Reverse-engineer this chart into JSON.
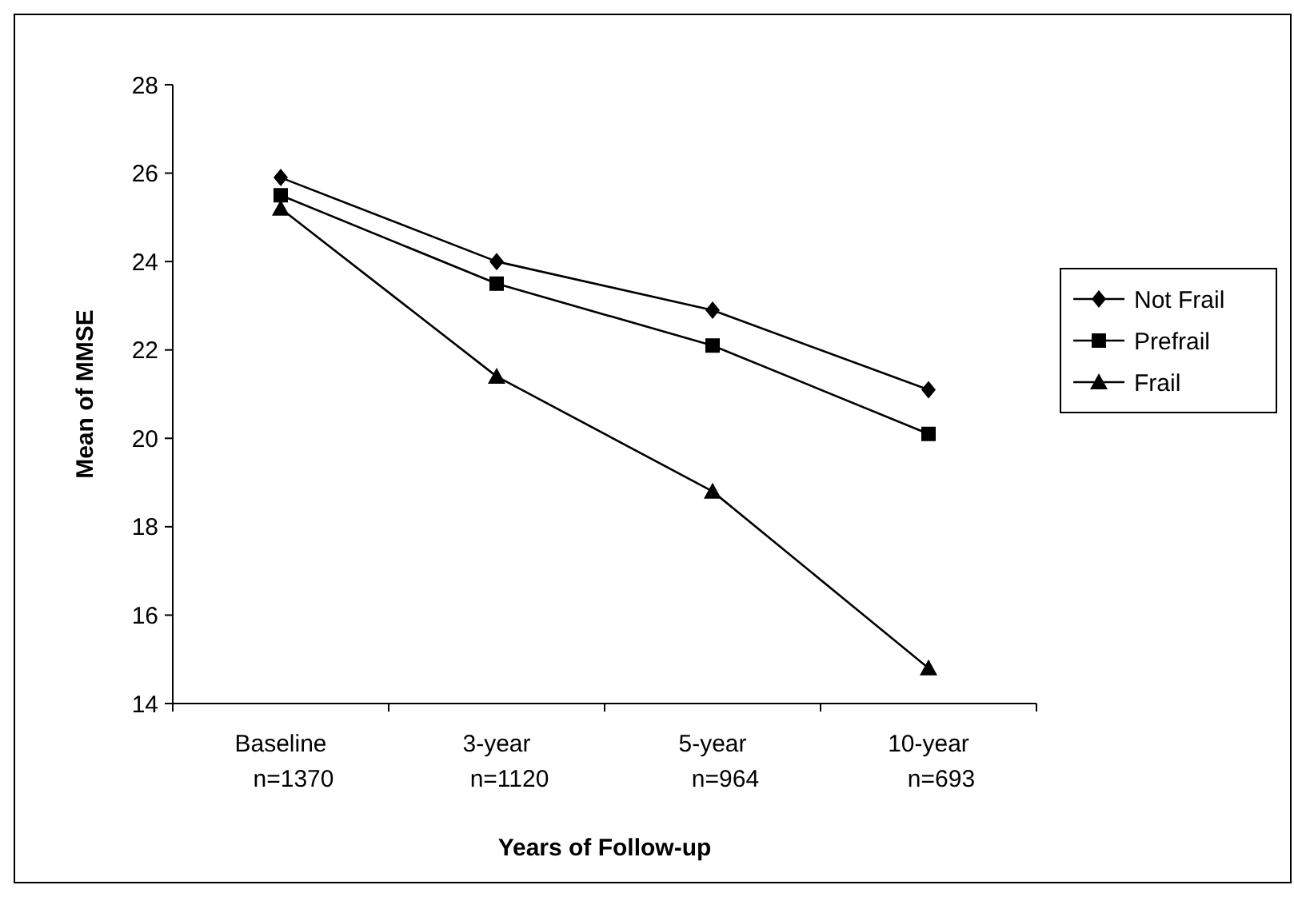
{
  "chart_data": {
    "type": "line",
    "xlabel": "Years of Follow-up",
    "ylabel": "Mean of MMSE",
    "categories": [
      "Baseline\nn=1370",
      "3-year\nn=1120",
      "5-year\nn=964",
      "10-year\nn=693"
    ],
    "series": [
      {
        "name": "Not Frail",
        "color": "#000000",
        "marker": "diamond",
        "values": [
          25.9,
          24.0,
          22.9,
          21.1
        ]
      },
      {
        "name": "Prefrail",
        "color": "#000000",
        "marker": "square",
        "values": [
          25.5,
          23.5,
          22.1,
          20.1
        ]
      },
      {
        "name": "Frail",
        "color": "#000000",
        "marker": "triangle",
        "values": [
          25.2,
          21.4,
          18.8,
          14.8
        ]
      }
    ],
    "ylim": [
      14,
      28
    ],
    "yticks": [
      14,
      16,
      18,
      20,
      22,
      24,
      26,
      28
    ],
    "grid": false,
    "legend": "right",
    "line_style": "solid"
  }
}
